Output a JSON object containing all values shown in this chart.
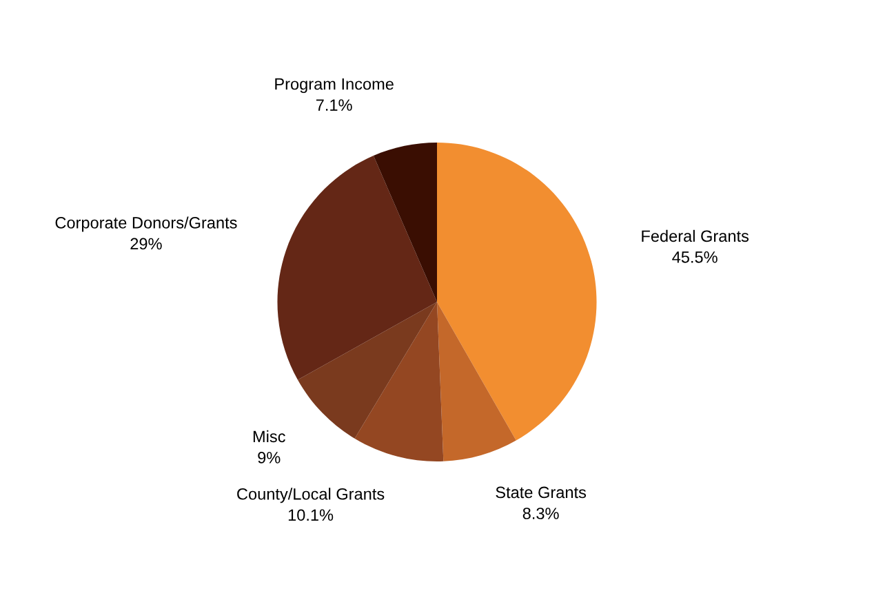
{
  "chart_data": {
    "type": "pie",
    "categories": [
      "Federal Grants",
      "State Grants",
      "County/Local Grants",
      "Misc",
      "Corporate Donors/Grants",
      "Program Income"
    ],
    "values": [
      45.5,
      8.3,
      10.1,
      9,
      29,
      7.1
    ],
    "value_labels": [
      "45.5%",
      "8.3%",
      "10.1%",
      "9%",
      "29%",
      "7.1%"
    ],
    "colors": [
      "#f28e30",
      "#c4682a",
      "#944722",
      "#7a3a1e",
      "#642716",
      "#3a0e02"
    ],
    "legend": false
  }
}
